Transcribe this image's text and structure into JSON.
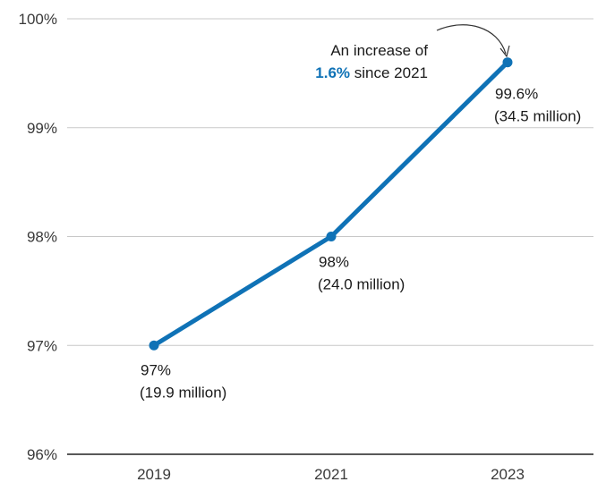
{
  "chart_data": {
    "type": "line",
    "categories": [
      "2019",
      "2021",
      "2023"
    ],
    "series": [
      {
        "values": [
          97.0,
          98.0,
          99.6
        ]
      }
    ],
    "data_labels": [
      {
        "value": "97%",
        "detail": "(19.9 million)"
      },
      {
        "value": "98%",
        "detail": "(24.0 million)"
      },
      {
        "value": "99.6%",
        "detail": "(34.5 million)"
      }
    ],
    "y_ticks": [
      {
        "value": 96,
        "label": "96%"
      },
      {
        "value": 97,
        "label": "97%"
      },
      {
        "value": 98,
        "label": "98%"
      },
      {
        "value": 99,
        "label": "99%"
      },
      {
        "value": 100,
        "label": "100%"
      }
    ],
    "ylim": [
      96,
      100
    ],
    "grid": true,
    "annotation": {
      "line1": "An increase of",
      "highlight": "1.6%",
      "line2_rest": " since 2021",
      "target_category": "2023"
    },
    "colors": {
      "line": "#0f72b6",
      "highlight": "#0f72b6",
      "grid": "#c8c8c8",
      "axis": "#222222"
    }
  }
}
